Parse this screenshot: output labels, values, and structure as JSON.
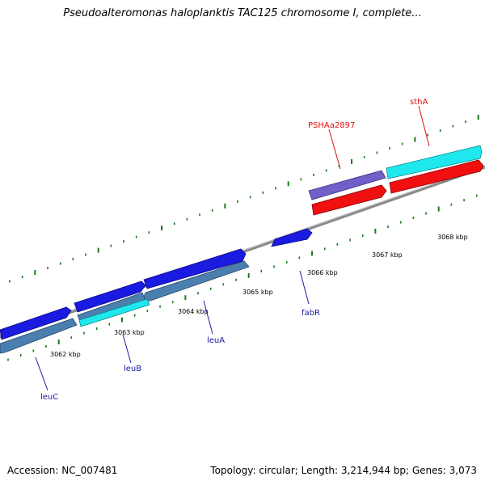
{
  "title": "Pseudoalteromonas haloplanktis TAC125 chromosome I, complete...",
  "footer": {
    "accession": "Accession: NC_007481",
    "summary": "Topology: circular; Length: 3,214,944 bp; Genes: 3,073"
  },
  "colors": {
    "backbone": "#8a8a8a",
    "tick": "#1a7a1a",
    "forward_gene": "#1a1ae0",
    "reverse_gene_steel": "#4a7fb0",
    "cyan_gene": "#1ee8ee",
    "red_gene": "#f01010",
    "purple_gene": "#7060c8",
    "label_blue": "#1a1aa0",
    "label_red": "#e01010",
    "tick_label": "#000000"
  },
  "scale_labels": [
    "3062 kbp",
    "3063 kbp",
    "3064 kbp",
    "3065 kbp",
    "3066 kbp",
    "3067 kbp",
    "3068 kbp"
  ],
  "gene_labels": [
    {
      "name": "leuC",
      "color": "blue"
    },
    {
      "name": "leuB",
      "color": "blue"
    },
    {
      "name": "leuA",
      "color": "blue"
    },
    {
      "name": "fabR",
      "color": "blue"
    },
    {
      "name": "PSHAa2897",
      "color": "red"
    },
    {
      "name": "sthA",
      "color": "red"
    }
  ]
}
